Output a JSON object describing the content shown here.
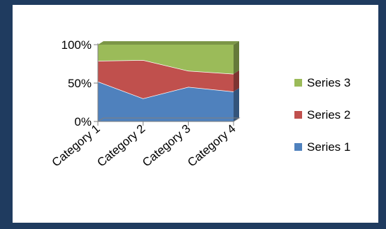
{
  "chart_data": {
    "type": "area",
    "stacking": "percent",
    "view": "3d",
    "categories": [
      "Category 1",
      "Category 2",
      "Category 3",
      "Category 4"
    ],
    "series": [
      {
        "name": "Series 1",
        "values": [
          52,
          30,
          45,
          39
        ],
        "color": "#4f81bd"
      },
      {
        "name": "Series 2",
        "values": [
          27,
          50,
          21,
          23
        ],
        "color": "#c0504d"
      },
      {
        "name": "Series 3",
        "values": [
          21,
          20,
          34,
          38
        ],
        "color": "#9bbb59"
      }
    ],
    "y_ticks": [
      "0%",
      "50%",
      "100%"
    ],
    "ylim": [
      0,
      100
    ],
    "title": "",
    "xlabel": "",
    "ylabel": "",
    "legend": "right",
    "grid": false
  },
  "colors": {
    "background": "#1f3b5f",
    "chart_background": "#ffffff"
  }
}
